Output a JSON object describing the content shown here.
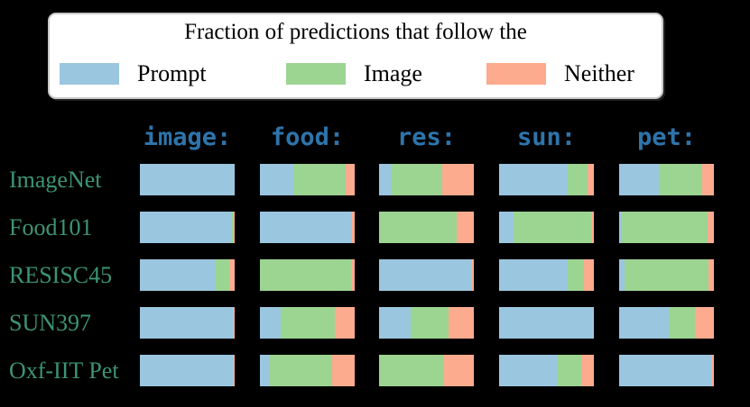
{
  "legend": {
    "title": "Fraction of predictions that follow the",
    "items": [
      {
        "name": "prompt",
        "label": "Prompt"
      },
      {
        "name": "image",
        "label": "Image"
      },
      {
        "name": "neither",
        "label": "Neither"
      }
    ]
  },
  "colors": {
    "prompt": "#9bc6e0",
    "image": "#9cd492",
    "neither": "#fcab8e",
    "header_text": "#2e74ab",
    "row_label_text": "#3d9378",
    "legend_border": "#c9c9c9",
    "legend_background": "#ffffff",
    "page_background": "#000000"
  },
  "chart_data": {
    "type": "bar",
    "subtype": "stacked-horizontal",
    "unit": "percent",
    "title": "Fraction of predictions that follow the",
    "legend_entries": [
      "Prompt",
      "Image",
      "Neither"
    ],
    "legend_position": "top",
    "grid": false,
    "xlim": [
      0,
      100
    ],
    "columns": [
      "image:",
      "food:",
      "res:",
      "sun:",
      "pet:"
    ],
    "series_order": [
      "Prompt",
      "Image",
      "Neither"
    ],
    "rows": [
      {
        "label": "ImageNet",
        "bars": [
          [
            100,
            0,
            0
          ],
          [
            35,
            55,
            10
          ],
          [
            12,
            55,
            33
          ],
          [
            72,
            21,
            7
          ],
          [
            42,
            46,
            12
          ]
        ]
      },
      {
        "label": "Food101",
        "bars": [
          [
            96,
            3,
            1
          ],
          [
            97,
            0,
            3
          ],
          [
            0,
            82,
            18
          ],
          [
            15,
            82,
            3
          ],
          [
            3,
            90,
            7
          ]
        ]
      },
      {
        "label": "RESISC45",
        "bars": [
          [
            79,
            15,
            6
          ],
          [
            0,
            96,
            4
          ],
          [
            97,
            0,
            3
          ],
          [
            72,
            18,
            10
          ],
          [
            6,
            88,
            6
          ]
        ]
      },
      {
        "label": "SUN397",
        "bars": [
          [
            99,
            0.5,
            0.5
          ],
          [
            22,
            57,
            21
          ],
          [
            33,
            40,
            27
          ],
          [
            99,
            0,
            1
          ],
          [
            52,
            28,
            20
          ]
        ]
      },
      {
        "label": "Oxf-IIT Pet",
        "bars": [
          [
            99,
            0,
            1
          ],
          [
            10,
            66,
            24
          ],
          [
            0,
            69,
            31
          ],
          [
            62,
            25,
            13
          ],
          [
            97,
            0,
            3
          ]
        ]
      }
    ]
  }
}
